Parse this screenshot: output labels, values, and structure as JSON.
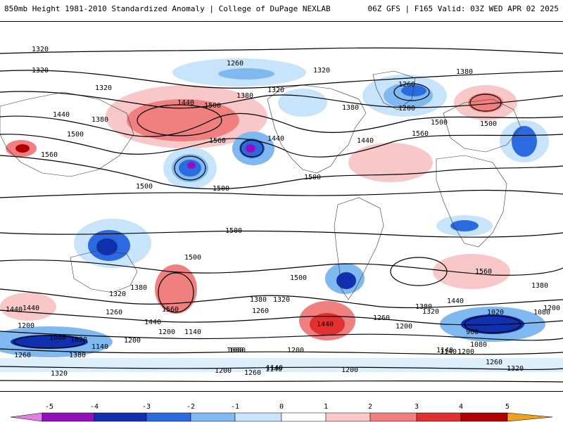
{
  "header": {
    "title_left": "850mb Height 1981-2010 Standardized Anomaly | College of DuPage NEXLAB",
    "title_right": "06Z GFS | F165 Valid: 03Z WED APR 02 2025"
  },
  "map": {
    "contour_labels": [
      "1320",
      "1320",
      "1320",
      "1260",
      "1320",
      "1380",
      "1440",
      "1500",
      "1320",
      "1260",
      "1200",
      "1380",
      "1380",
      "1440",
      "1380",
      "1500",
      "1560",
      "1560",
      "1500",
      "1560",
      "1440",
      "1500",
      "1440",
      "1500",
      "1500",
      "1500",
      "1560",
      "1500",
      "1500",
      "1500",
      "1440",
      "1380",
      "1320",
      "1260",
      "1560",
      "1440",
      "1380",
      "1320",
      "1260",
      "1200",
      "1140",
      "1440",
      "1200",
      "1440",
      "1260",
      "1200",
      "1140",
      "1200",
      "1080",
      "1200",
      "1140",
      "1080",
      "1020",
      "1260",
      "1380",
      "1320",
      "1200",
      "1260",
      "1140",
      "1080",
      "1380",
      "1440",
      "1320",
      "1380",
      "1200",
      "1020",
      "960",
      "1080",
      "1200",
      "1140",
      "1260",
      "1320",
      "1080",
      "1140",
      "1200"
    ]
  },
  "legend": {
    "ticks": [
      "-5",
      "-4",
      "-3",
      "-2",
      "-1",
      "0",
      "1",
      "2",
      "3",
      "4",
      "5"
    ],
    "colors": {
      "neg5": "#e080e0",
      "neg4": "#9010c0",
      "neg3": "#1030b0",
      "neg2": "#2c6ae0",
      "neg1": "#80b8f0",
      "neg0": "#c8e4fa",
      "pos0": "#ffffff",
      "pos1": "#f8c8c8",
      "pos2": "#f08080",
      "pos3": "#e03030",
      "pos4": "#b00000",
      "pos5": "#f0a020"
    }
  }
}
